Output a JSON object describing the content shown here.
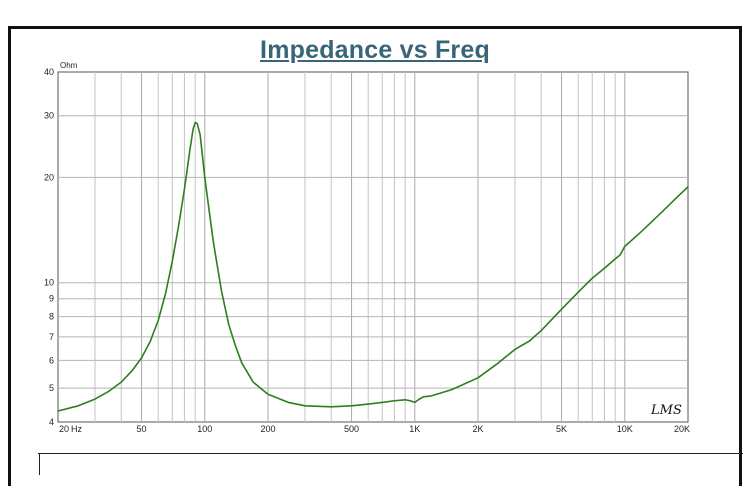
{
  "chart_data": {
    "type": "line",
    "title": "Impedance vs Freq",
    "ylabel_unit": "Ohm",
    "x_scale": "log",
    "y_scale": "log",
    "xlim": [
      20,
      20000
    ],
    "ylim": [
      4,
      40
    ],
    "grid": true,
    "x_ticks": [
      {
        "value": 20,
        "label": "20"
      },
      {
        "value": 50,
        "label": "50"
      },
      {
        "value": 100,
        "label": "100"
      },
      {
        "value": 200,
        "label": "200"
      },
      {
        "value": 500,
        "label": "500"
      },
      {
        "value": 1000,
        "label": "1K"
      },
      {
        "value": 2000,
        "label": "2K"
      },
      {
        "value": 5000,
        "label": "5K"
      },
      {
        "value": 10000,
        "label": "10K"
      },
      {
        "value": 20000,
        "label": "20K"
      }
    ],
    "x_unit": "Hz",
    "y_ticks": [
      4,
      5,
      6,
      7,
      8,
      9,
      10,
      20,
      30,
      40
    ],
    "series": [
      {
        "color": "#2e7d1f",
        "points": [
          [
            20,
            4.3
          ],
          [
            25,
            4.45
          ],
          [
            30,
            4.65
          ],
          [
            35,
            4.9
          ],
          [
            40,
            5.2
          ],
          [
            45,
            5.6
          ],
          [
            50,
            6.1
          ],
          [
            55,
            6.8
          ],
          [
            60,
            7.8
          ],
          [
            65,
            9.3
          ],
          [
            70,
            11.5
          ],
          [
            75,
            14.5
          ],
          [
            80,
            18.5
          ],
          [
            85,
            24
          ],
          [
            88,
            27.5
          ],
          [
            90,
            28.7
          ],
          [
            92,
            28.5
          ],
          [
            95,
            26.5
          ],
          [
            100,
            20
          ],
          [
            105,
            16
          ],
          [
            110,
            13
          ],
          [
            120,
            9.5
          ],
          [
            130,
            7.6
          ],
          [
            140,
            6.6
          ],
          [
            150,
            5.9
          ],
          [
            170,
            5.2
          ],
          [
            200,
            4.8
          ],
          [
            250,
            4.55
          ],
          [
            300,
            4.45
          ],
          [
            400,
            4.42
          ],
          [
            500,
            4.45
          ],
          [
            600,
            4.5
          ],
          [
            700,
            4.55
          ],
          [
            800,
            4.6
          ],
          [
            900,
            4.63
          ],
          [
            950,
            4.6
          ],
          [
            1000,
            4.55
          ],
          [
            1050,
            4.65
          ],
          [
            1100,
            4.72
          ],
          [
            1200,
            4.75
          ],
          [
            1500,
            4.95
          ],
          [
            2000,
            5.35
          ],
          [
            2500,
            5.9
          ],
          [
            3000,
            6.45
          ],
          [
            3200,
            6.6
          ],
          [
            3500,
            6.8
          ],
          [
            4000,
            7.3
          ],
          [
            5000,
            8.4
          ],
          [
            6000,
            9.4
          ],
          [
            7000,
            10.3
          ],
          [
            8000,
            11.0
          ],
          [
            9000,
            11.7
          ],
          [
            9500,
            12.0
          ],
          [
            10000,
            12.7
          ],
          [
            12000,
            14.0
          ],
          [
            15000,
            15.9
          ],
          [
            18000,
            17.7
          ],
          [
            20000,
            18.8
          ]
        ]
      }
    ],
    "watermark": "LMS"
  }
}
